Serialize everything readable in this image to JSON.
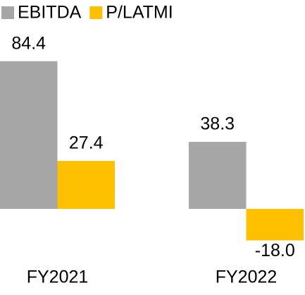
{
  "chart_data": {
    "type": "bar",
    "categories": [
      "FY2021",
      "FY2022"
    ],
    "series": [
      {
        "name": "EBITDA",
        "color": "#a6a6a6",
        "values": [
          84.4,
          38.3
        ],
        "value_labels": [
          "84.4",
          "38.3"
        ]
      },
      {
        "name": "P/LATMI",
        "color": "#ffc000",
        "values": [
          27.4,
          -18.0
        ],
        "value_labels": [
          "27.4",
          "-18.0"
        ]
      }
    ],
    "legend": "top-left"
  }
}
